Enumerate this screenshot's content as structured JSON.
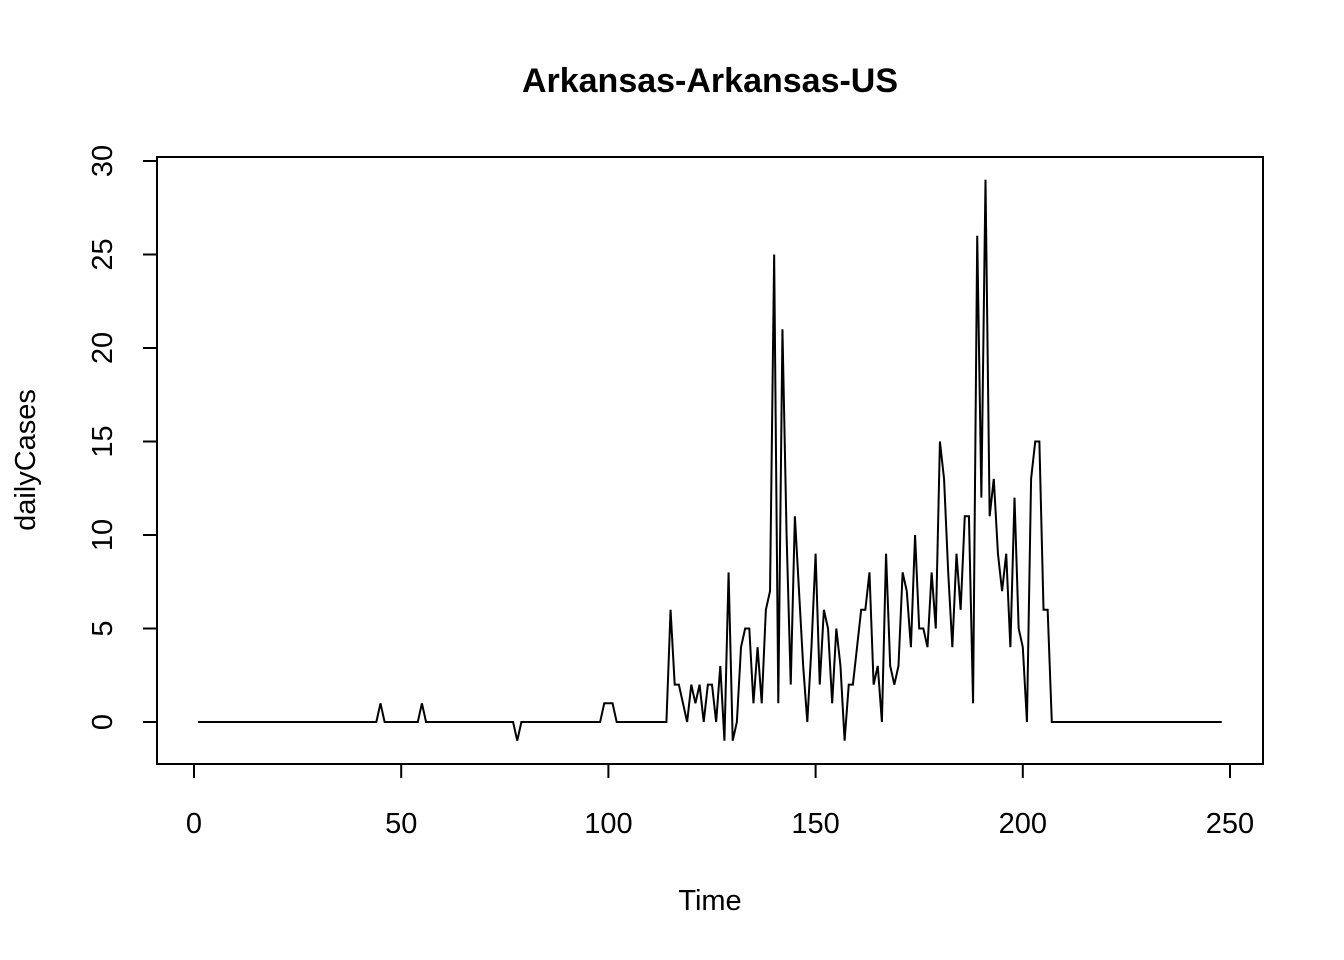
{
  "chart_data": {
    "type": "line",
    "title": "Arkansas-Arkansas-US",
    "xlabel": "Time",
    "ylabel": "dailyCases",
    "xlim": [
      1,
      248
    ],
    "ylim": [
      -1,
      29
    ],
    "xticks": [
      0,
      50,
      100,
      150,
      200,
      250
    ],
    "yticks": [
      0,
      5,
      10,
      15,
      20,
      25,
      30
    ],
    "xtick_labels": [
      "0",
      "50",
      "100",
      "150",
      "200",
      "250"
    ],
    "ytick_labels": [
      "0",
      "5",
      "10",
      "15",
      "20",
      "25",
      "30"
    ],
    "grid": false,
    "legend": "none",
    "series": [
      {
        "color": "#000000",
        "x": [
          1,
          44,
          45,
          46,
          54,
          55,
          56,
          77,
          78,
          79,
          98,
          99,
          100,
          101,
          102,
          114,
          115,
          116,
          117,
          118,
          119,
          120,
          121,
          122,
          123,
          124,
          125,
          126,
          127,
          128,
          129,
          130,
          131,
          132,
          133,
          134,
          135,
          136,
          137,
          138,
          139,
          140,
          141,
          142,
          143,
          144,
          145,
          146,
          147,
          148,
          149,
          150,
          151,
          152,
          153,
          154,
          155,
          156,
          157,
          158,
          159,
          160,
          161,
          162,
          163,
          164,
          165,
          166,
          167,
          168,
          169,
          170,
          171,
          172,
          173,
          174,
          175,
          176,
          177,
          178,
          179,
          180,
          181,
          182,
          183,
          184,
          185,
          186,
          187,
          188,
          189,
          190,
          191,
          192,
          193,
          194,
          195,
          196,
          197,
          198,
          199,
          200,
          201,
          202,
          203,
          204,
          205,
          206,
          207,
          248
        ],
        "y": [
          0,
          0,
          1,
          0,
          0,
          1,
          0,
          0,
          -1,
          0,
          0,
          1,
          1,
          1,
          0,
          0,
          6,
          2,
          2,
          1,
          0,
          2,
          1,
          2,
          0,
          2,
          2,
          0,
          3,
          -1,
          8,
          -1,
          0,
          4,
          5,
          5,
          1,
          4,
          1,
          6,
          7,
          25,
          1,
          21,
          10,
          2,
          11,
          7,
          3,
          0,
          4,
          9,
          2,
          6,
          5,
          1,
          5,
          3,
          -1,
          2,
          2,
          4,
          6,
          6,
          8,
          2,
          3,
          0,
          9,
          3,
          2,
          3,
          8,
          7,
          4,
          10,
          5,
          5,
          4,
          8,
          5,
          15,
          13,
          8,
          4,
          9,
          6,
          11,
          11,
          1,
          26,
          12,
          29,
          11,
          13,
          9,
          7,
          9,
          4,
          12,
          5,
          4,
          0,
          13,
          15,
          15,
          6,
          6,
          0,
          0
        ]
      }
    ]
  }
}
